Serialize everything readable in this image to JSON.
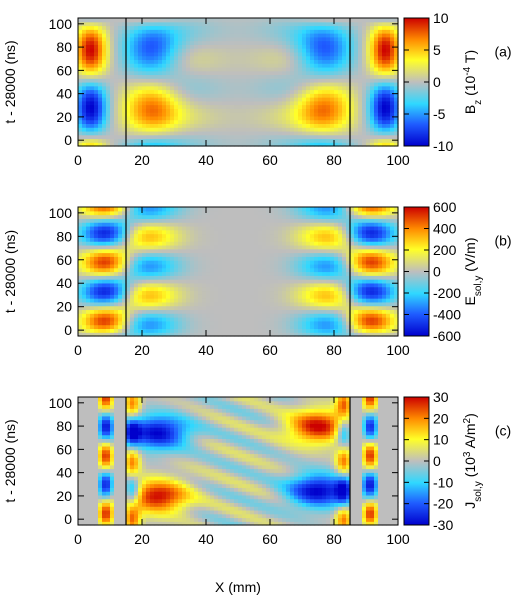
{
  "chart_data": [
    {
      "type": "heatmap",
      "panel_label": "(a)",
      "ylabel": "t - 28000 (ns)",
      "xlabel": "",
      "xlim": [
        0,
        100
      ],
      "ylim": [
        -5,
        105
      ],
      "x_ticks": [
        "0",
        "20",
        "40",
        "60",
        "80",
        "100"
      ],
      "y_ticks": [
        "0",
        "20",
        "40",
        "60",
        "80",
        "100"
      ],
      "colorbar_label": {
        "main": "B",
        "sub": "z",
        "rest": " (10",
        "sup": "-4",
        "unit": " T)"
      },
      "colorbar_range": [
        -10,
        10
      ],
      "colorbar_ticks": [
        "-10",
        "-5",
        "0",
        "5",
        "10"
      ],
      "vertical_lines_x": [
        15,
        85
      ],
      "field": "bz"
    },
    {
      "type": "heatmap",
      "panel_label": "(b)",
      "ylabel": "t - 28000 (ns)",
      "xlabel": "",
      "xlim": [
        0,
        100
      ],
      "ylim": [
        -5,
        105
      ],
      "x_ticks": [
        "0",
        "20",
        "40",
        "60",
        "80",
        "100"
      ],
      "y_ticks": [
        "0",
        "20",
        "40",
        "60",
        "80",
        "100"
      ],
      "colorbar_label": {
        "main": "E",
        "sub": "sol,y",
        "rest": " (V/m)",
        "sup": "",
        "unit": ""
      },
      "colorbar_range": [
        -600,
        600
      ],
      "colorbar_ticks": [
        "-600",
        "-400",
        "-200",
        "0",
        "200",
        "400",
        "600"
      ],
      "vertical_lines_x": [
        15,
        85
      ],
      "field": "ey"
    },
    {
      "type": "heatmap",
      "panel_label": "(c)",
      "ylabel": "t - 28000 (ns)",
      "xlabel": "X (mm)",
      "xlim": [
        0,
        100
      ],
      "ylim": [
        -5,
        105
      ],
      "x_ticks": [
        "0",
        "20",
        "40",
        "60",
        "80",
        "100"
      ],
      "y_ticks": [
        "0",
        "20",
        "40",
        "60",
        "80",
        "100"
      ],
      "colorbar_label": {
        "main": "J",
        "sub": "sol,y",
        "rest": " (10",
        "sup": "3",
        "unit": " A/m",
        "sup2": "2",
        "end": ")"
      },
      "colorbar_range": [
        -30,
        30
      ],
      "colorbar_ticks": [
        "-30",
        "-20",
        "-10",
        "0",
        "10",
        "20",
        "30"
      ],
      "vertical_lines_x": [
        15,
        85
      ],
      "field": "jy"
    }
  ]
}
